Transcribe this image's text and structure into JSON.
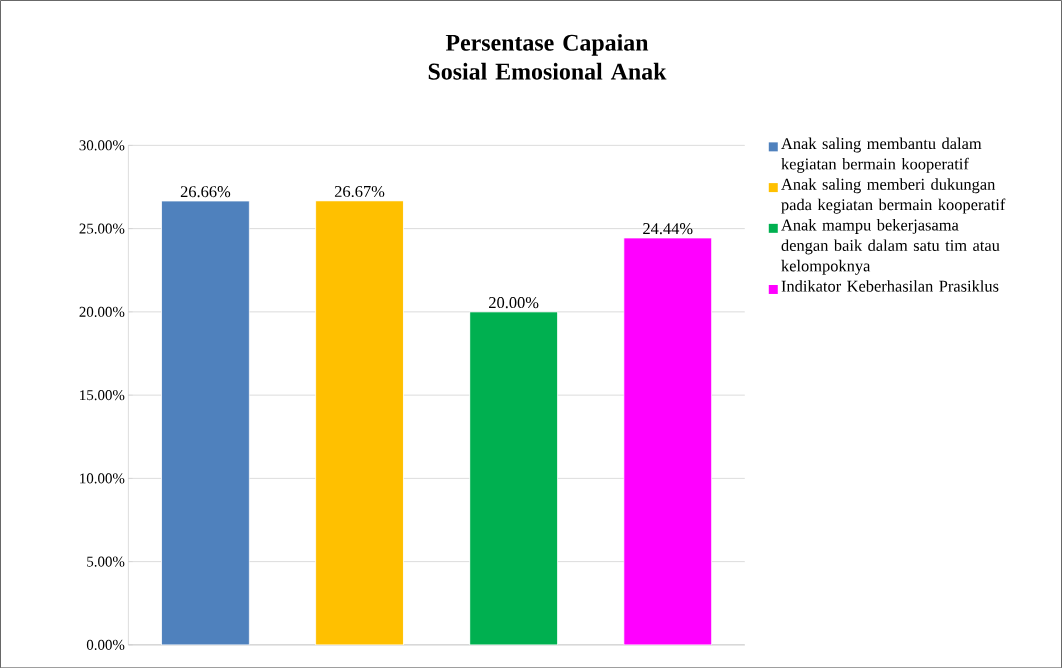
{
  "chart_data": {
    "type": "bar",
    "title": "Persentase Capaian Sosial Emosional Anak",
    "categories": [
      null,
      null,
      null,
      null
    ],
    "series": [
      {
        "name": "Anak saling membantu dalam kegiatan bermain kooperatif",
        "color": "#4f81bd",
        "values": [
          26.66,
          null,
          null,
          null
        ],
        "value_labels": [
          "26.66%",
          null,
          null,
          null
        ]
      },
      {
        "name": "Anak saling memberi dukungan pada kegiatan bermain kooperatif",
        "color": "#ffc000",
        "values": [
          null,
          26.67,
          null,
          null
        ],
        "value_labels": [
          null,
          "26.67%",
          null,
          null
        ]
      },
      {
        "name": "Anak mampu bekerjasama dengan baik dalam satu tim atau kelompoknya",
        "color": "#00b050",
        "values": [
          null,
          null,
          20.0,
          null
        ],
        "value_labels": [
          null,
          null,
          "20.00%",
          null
        ]
      },
      {
        "name": "Indikator Keberhasilan Prasiklus",
        "color": "#ff00ff",
        "values": [
          null,
          null,
          null,
          24.44
        ],
        "value_labels": [
          null,
          null,
          null,
          "24.44%"
        ]
      }
    ],
    "ylim": [
      0,
      30
    ],
    "yticks": [
      {
        "value": 0,
        "label": "0.00%"
      },
      {
        "value": 5,
        "label": "5.00%"
      },
      {
        "value": 10,
        "label": "10.00%"
      },
      {
        "value": 15,
        "label": "15.00%"
      },
      {
        "value": 20,
        "label": "20.00%"
      },
      {
        "value": 25,
        "label": "25.00%"
      },
      {
        "value": 30,
        "label": "30.00%"
      }
    ],
    "grid": "y",
    "legend": "right"
  }
}
